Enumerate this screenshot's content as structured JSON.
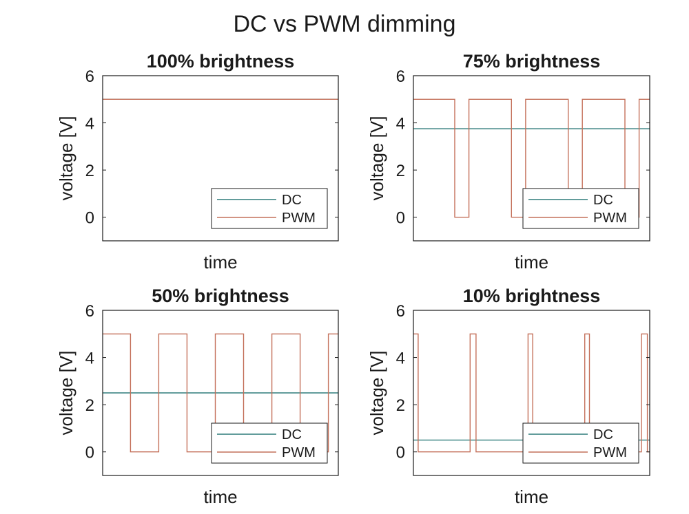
{
  "figure": {
    "title": "DC vs PWM dimming",
    "colors": {
      "dc": "#2e7b7a",
      "pwm": "#c4705a",
      "axis": "#1a1a1a"
    }
  },
  "chart_data": [
    {
      "type": "line",
      "title": "100% brightness",
      "xlabel": "time",
      "ylabel": "voltage [V]",
      "ylim": [
        -1,
        6
      ],
      "yticks": [
        0,
        2,
        4,
        6
      ],
      "xlim": [
        0,
        100
      ],
      "legend": {
        "position": "bottom-right",
        "entries": [
          "DC",
          "PWM"
        ]
      },
      "series": [
        {
          "name": "DC",
          "color": "#2e7b7a",
          "x": [
            0,
            100
          ],
          "y": [
            5,
            5
          ]
        },
        {
          "name": "PWM",
          "color": "#c4705a",
          "x": [
            0,
            100
          ],
          "y": [
            5,
            5
          ]
        }
      ]
    },
    {
      "type": "line",
      "title": "75% brightness",
      "xlabel": "time",
      "ylabel": "voltage [V]",
      "ylim": [
        -1,
        6
      ],
      "yticks": [
        0,
        2,
        4,
        6
      ],
      "xlim": [
        0,
        100
      ],
      "legend": {
        "position": "bottom-right",
        "entries": [
          "DC",
          "PWM"
        ]
      },
      "series": [
        {
          "name": "DC",
          "color": "#2e7b7a",
          "x": [
            0,
            100
          ],
          "y": [
            3.75,
            3.75
          ]
        },
        {
          "name": "PWM",
          "color": "#c4705a",
          "x": [
            0,
            17.5,
            17.5,
            23.5,
            23.5,
            41.5,
            41.5,
            47.5,
            47.5,
            65.5,
            65.5,
            71.5,
            71.5,
            89.5,
            89.5,
            95.5,
            95.5,
            100
          ],
          "y": [
            5,
            5,
            0,
            0,
            5,
            5,
            0,
            0,
            5,
            5,
            0,
            0,
            5,
            5,
            0,
            0,
            5,
            5
          ]
        }
      ]
    },
    {
      "type": "line",
      "title": "50% brightness",
      "xlabel": "time",
      "ylabel": "voltage [V]",
      "ylim": [
        -1,
        6
      ],
      "yticks": [
        0,
        2,
        4,
        6
      ],
      "xlim": [
        0,
        100
      ],
      "legend": {
        "position": "bottom-right",
        "entries": [
          "DC",
          "PWM"
        ]
      },
      "series": [
        {
          "name": "DC",
          "color": "#2e7b7a",
          "x": [
            0,
            100
          ],
          "y": [
            2.5,
            2.5
          ]
        },
        {
          "name": "PWM",
          "color": "#c4705a",
          "x": [
            0,
            11.8,
            11.8,
            23.8,
            23.8,
            35.8,
            35.8,
            47.8,
            47.8,
            59.8,
            59.8,
            71.8,
            71.8,
            83.8,
            83.8,
            95.8,
            95.8,
            100
          ],
          "y": [
            5,
            5,
            0,
            0,
            5,
            5,
            0,
            0,
            5,
            5,
            0,
            0,
            5,
            5,
            0,
            0,
            5,
            5
          ]
        }
      ]
    },
    {
      "type": "line",
      "title": "10% brightness",
      "xlabel": "time",
      "ylabel": "voltage [V]",
      "ylim": [
        -1,
        6
      ],
      "yticks": [
        0,
        2,
        4,
        6
      ],
      "xlim": [
        0,
        100
      ],
      "legend": {
        "position": "bottom-right",
        "entries": [
          "DC",
          "PWM"
        ]
      },
      "series": [
        {
          "name": "DC",
          "color": "#2e7b7a",
          "x": [
            0,
            100
          ],
          "y": [
            0.5,
            0.5
          ]
        },
        {
          "name": "PWM",
          "color": "#c4705a",
          "x": [
            0,
            2,
            2,
            24,
            24,
            26.5,
            26.5,
            48.5,
            48.5,
            50.5,
            50.5,
            72.5,
            72.5,
            74.5,
            74.5,
            96.5,
            96.5,
            99,
            99,
            100
          ],
          "y": [
            5,
            5,
            0,
            0,
            5,
            5,
            0,
            0,
            5,
            5,
            0,
            0,
            5,
            5,
            0,
            0,
            5,
            5,
            0,
            0
          ]
        }
      ]
    }
  ]
}
